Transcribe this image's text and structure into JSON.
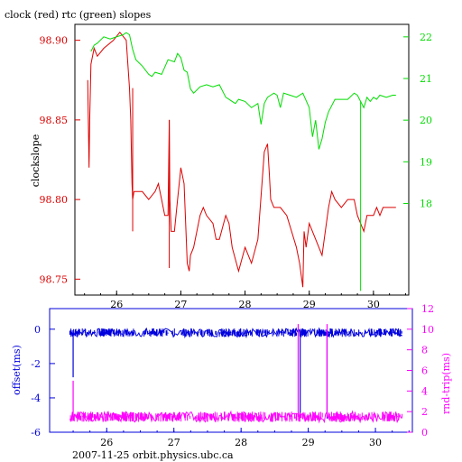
{
  "header": {
    "title": "clock (red) rtc (green) slopes"
  },
  "footer": {
    "credit": "2007-11-25  orbit.physics.ubc.ca"
  },
  "colors": {
    "red": "#dd0000",
    "green": "#00dd00",
    "blue": "#0000dd",
    "magenta": "#ff00ff"
  },
  "chart_data": [
    {
      "type": "line",
      "title": "clock (red) rtc (green) slopes",
      "ylabel": "clockslope",
      "xlim": [
        25.35,
        30.55
      ],
      "ylim": [
        98.74,
        98.91
      ],
      "y2lim": [
        15.8,
        22.3
      ],
      "x_ticks": [
        26,
        27,
        28,
        29,
        30
      ],
      "y_ticks": [
        98.75,
        98.8,
        98.85,
        98.9
      ],
      "y2_ticks": [
        18,
        19,
        20,
        21,
        22
      ],
      "series": [
        {
          "name": "clock",
          "axis": "left",
          "color": "#dd0000",
          "x": [
            25.55,
            25.57,
            25.58,
            25.6,
            25.65,
            25.7,
            25.8,
            25.95,
            26.05,
            26.15,
            26.2,
            26.22,
            26.24,
            26.25,
            26.27,
            26.3,
            26.4,
            26.5,
            26.6,
            26.65,
            26.7,
            26.75,
            26.8,
            26.82,
            26.83,
            26.85,
            26.9,
            26.95,
            27.0,
            27.05,
            27.1,
            27.13,
            27.15,
            27.2,
            27.3,
            27.35,
            27.4,
            27.5,
            27.55,
            27.6,
            27.7,
            27.75,
            27.8,
            27.9,
            28.0,
            28.1,
            28.2,
            28.3,
            28.35,
            28.38,
            28.4,
            28.45,
            28.55,
            28.65,
            28.8,
            28.85,
            28.9,
            28.92,
            28.95,
            29.0,
            29.1,
            29.2,
            29.3,
            29.35,
            29.4,
            29.5,
            29.6,
            29.7,
            29.75,
            29.8,
            29.85,
            29.9,
            30.0,
            30.05,
            30.1,
            30.15,
            30.2,
            30.25,
            30.3,
            30.35
          ],
          "y": [
            98.875,
            98.82,
            98.85,
            98.885,
            98.895,
            98.89,
            98.895,
            98.9,
            98.905,
            98.9,
            98.87,
            98.85,
            98.81,
            98.8,
            98.805,
            98.805,
            98.805,
            98.8,
            98.805,
            98.81,
            98.8,
            98.79,
            98.79,
            98.85,
            98.8,
            98.78,
            98.78,
            98.8,
            98.82,
            98.81,
            98.76,
            98.755,
            98.765,
            98.77,
            98.79,
            98.795,
            98.79,
            98.785,
            98.775,
            98.775,
            98.79,
            98.785,
            98.77,
            98.755,
            98.77,
            98.76,
            98.775,
            98.83,
            98.835,
            98.815,
            98.8,
            98.795,
            98.795,
            98.79,
            98.77,
            98.76,
            98.745,
            98.78,
            98.77,
            98.785,
            98.775,
            98.765,
            98.795,
            98.805,
            98.8,
            98.795,
            98.8,
            98.8,
            98.79,
            98.785,
            98.78,
            98.79,
            98.79,
            98.795,
            98.79,
            98.795,
            98.795,
            98.795,
            98.795,
            98.795
          ]
        },
        {
          "name": "rtc",
          "axis": "right",
          "color": "#00dd00",
          "x": [
            25.6,
            25.65,
            25.7,
            25.8,
            25.9,
            26.0,
            26.1,
            26.15,
            26.2,
            26.25,
            26.3,
            26.4,
            26.5,
            26.55,
            26.6,
            26.7,
            26.8,
            26.9,
            26.95,
            27.0,
            27.05,
            27.1,
            27.15,
            27.2,
            27.3,
            27.4,
            27.5,
            27.6,
            27.7,
            27.75,
            27.8,
            27.85,
            27.9,
            28.0,
            28.1,
            28.2,
            28.25,
            28.3,
            28.35,
            28.4,
            28.45,
            28.5,
            28.55,
            28.6,
            28.7,
            28.8,
            28.9,
            29.0,
            29.05,
            29.1,
            29.15,
            29.2,
            29.25,
            29.3,
            29.4,
            29.5,
            29.6,
            29.7,
            29.75,
            29.8,
            29.85,
            29.9,
            29.95,
            30.0,
            30.05,
            30.1,
            30.2,
            30.3,
            30.35
          ],
          "y": [
            21.65,
            21.8,
            21.85,
            22.0,
            21.95,
            22.0,
            22.05,
            22.1,
            22.05,
            21.7,
            21.45,
            21.3,
            21.1,
            21.05,
            21.15,
            21.1,
            21.45,
            21.4,
            21.6,
            21.5,
            21.2,
            21.15,
            20.75,
            20.65,
            20.8,
            20.85,
            20.8,
            20.85,
            20.55,
            20.5,
            20.45,
            20.4,
            20.5,
            20.45,
            20.3,
            20.4,
            19.9,
            20.4,
            20.55,
            20.6,
            20.65,
            20.6,
            20.3,
            20.65,
            20.6,
            20.55,
            20.65,
            20.3,
            19.6,
            20.0,
            19.3,
            19.55,
            19.95,
            20.2,
            20.5,
            20.5,
            20.5,
            20.65,
            20.6,
            20.45,
            20.3,
            20.55,
            20.45,
            20.55,
            20.5,
            20.6,
            20.55,
            20.6,
            20.6
          ]
        }
      ]
    },
    {
      "type": "line",
      "ylabel": "offset(ms)",
      "y2label": "rnd-trip(ms)",
      "xlim": [
        25.15,
        30.55
      ],
      "ylim": [
        -6,
        1.2
      ],
      "y2lim": [
        0,
        12
      ],
      "x_ticks": [
        26,
        27,
        28,
        29,
        30
      ],
      "y_ticks": [
        0,
        -2,
        -4,
        -6
      ],
      "y2_ticks": [
        0,
        2,
        4,
        6,
        8,
        10,
        12
      ],
      "series": [
        {
          "name": "offset",
          "axis": "left",
          "color": "#0000dd",
          "baseline": -0.2,
          "noise": 0.25,
          "x": [
            25.45,
            25.5,
            25.6,
            26.0,
            26.5,
            27.0,
            27.5,
            28.0,
            28.5,
            28.8,
            28.85,
            28.88,
            28.9,
            29.0,
            29.2,
            29.25,
            29.28,
            29.3,
            29.5,
            30.0,
            30.4
          ],
          "y": [
            -0.2,
            -2.8,
            -0.2,
            -0.2,
            -0.2,
            -0.2,
            -0.2,
            -0.2,
            -0.2,
            -0.2,
            -1.0,
            -5.0,
            -0.2,
            -0.2,
            -0.2,
            -0.2,
            -5.2,
            -0.2,
            -0.2,
            -0.2,
            -0.2
          ]
        },
        {
          "name": "rnd-trip",
          "axis": "right",
          "color": "#ff00ff",
          "baseline": 1.5,
          "noise": 0.5,
          "x": [
            25.45,
            25.5,
            25.55,
            26.0,
            26.5,
            27.0,
            27.5,
            28.0,
            28.5,
            28.82,
            28.85,
            28.88,
            29.0,
            29.2,
            29.25,
            29.28,
            29.3,
            29.5,
            30.0,
            30.4
          ],
          "y": [
            1.5,
            5.0,
            1.5,
            1.5,
            1.5,
            1.5,
            1.5,
            1.5,
            1.5,
            1.5,
            10.5,
            1.5,
            1.5,
            1.5,
            1.5,
            10.5,
            1.5,
            1.5,
            1.5,
            1.5
          ]
        }
      ]
    }
  ]
}
